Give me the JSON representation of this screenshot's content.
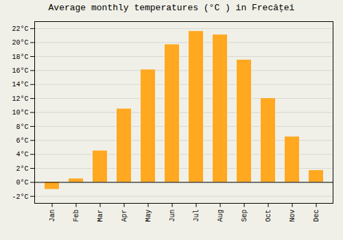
{
  "chart_data": {
    "type": "bar",
    "title": "Average monthly temperatures (°C ) in Frecăței",
    "categories": [
      "Jan",
      "Feb",
      "Mar",
      "Apr",
      "May",
      "Jun",
      "Jul",
      "Aug",
      "Sep",
      "Oct",
      "Nov",
      "Dec"
    ],
    "values": [
      -1.0,
      0.5,
      4.5,
      10.5,
      16.1,
      19.7,
      21.6,
      21.1,
      17.5,
      12.0,
      6.5,
      1.7
    ],
    "color": "#FFA820",
    "ylim": [
      -3,
      23
    ],
    "yticks": [
      {
        "value": -2,
        "label": "-2°C"
      },
      {
        "value": 0,
        "label": "0°C"
      },
      {
        "value": 2,
        "label": "2°C"
      },
      {
        "value": 4,
        "label": "4°C"
      },
      {
        "value": 6,
        "label": "6°C"
      },
      {
        "value": 8,
        "label": "8°C"
      },
      {
        "value": 10,
        "label": "10°C"
      },
      {
        "value": 12,
        "label": "12°C"
      },
      {
        "value": 14,
        "label": "14°C"
      },
      {
        "value": 16,
        "label": "16°C"
      },
      {
        "value": 18,
        "label": "18°C"
      },
      {
        "value": 20,
        "label": "20°C"
      },
      {
        "value": 22,
        "label": "22°C"
      }
    ],
    "grid": true
  }
}
